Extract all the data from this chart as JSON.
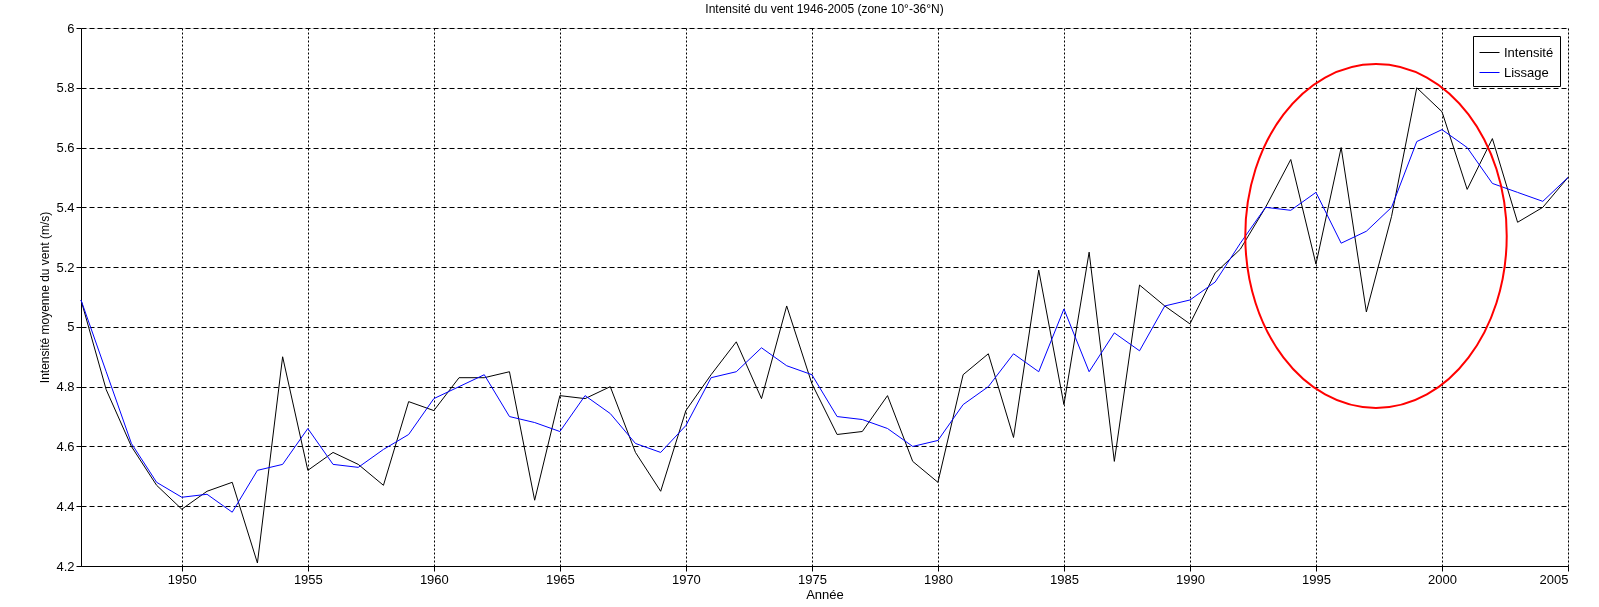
{
  "chart_data": {
    "type": "line",
    "title": "Intensité du vent 1946-2005 (zone 10°-36°N)",
    "xlabel": "Année",
    "ylabel": "Intensité moyenne du vent (m/s)",
    "x": [
      1946,
      1947,
      1948,
      1949,
      1950,
      1951,
      1952,
      1953,
      1954,
      1955,
      1956,
      1957,
      1958,
      1959,
      1960,
      1961,
      1962,
      1963,
      1964,
      1965,
      1966,
      1967,
      1968,
      1969,
      1970,
      1971,
      1972,
      1973,
      1974,
      1975,
      1976,
      1977,
      1978,
      1979,
      1980,
      1981,
      1982,
      1983,
      1984,
      1985,
      1986,
      1987,
      1988,
      1989,
      1990,
      1991,
      1992,
      1993,
      1994,
      1995,
      1996,
      1997,
      1998,
      1999,
      2000,
      2001,
      2002,
      2003,
      2004,
      2005
    ],
    "series": [
      {
        "name": "Intensité",
        "color": "#000000",
        "values": [
          5.09,
          4.79,
          4.6,
          4.47,
          4.39,
          4.45,
          4.48,
          4.21,
          4.9,
          4.52,
          4.58,
          4.54,
          4.47,
          4.75,
          4.72,
          4.83,
          4.83,
          4.85,
          4.42,
          4.77,
          4.76,
          4.8,
          4.58,
          4.45,
          4.72,
          4.84,
          4.95,
          4.76,
          5.07,
          4.81,
          4.64,
          4.65,
          4.77,
          4.55,
          4.48,
          4.84,
          4.91,
          4.63,
          5.19,
          4.74,
          5.25,
          4.55,
          5.14,
          5.07,
          5.01,
          5.18,
          5.26,
          5.4,
          5.56,
          5.21,
          5.6,
          5.05,
          5.37,
          5.8,
          5.72,
          5.46,
          5.63,
          5.35,
          5.4,
          5.5
        ]
      },
      {
        "name": "Lissage",
        "color": "#0000ff",
        "values": [
          5.09,
          4.85,
          4.61,
          4.48,
          4.43,
          4.44,
          4.38,
          4.52,
          4.54,
          4.66,
          4.54,
          4.53,
          4.59,
          4.64,
          4.76,
          4.8,
          4.84,
          4.7,
          4.68,
          4.65,
          4.77,
          4.71,
          4.61,
          4.58,
          4.67,
          4.83,
          4.85,
          4.93,
          4.87,
          4.84,
          4.7,
          4.69,
          4.66,
          4.6,
          4.62,
          4.74,
          4.8,
          4.91,
          4.85,
          5.06,
          4.85,
          4.98,
          4.92,
          5.07,
          5.09,
          5.15,
          5.28,
          5.4,
          5.39,
          5.45,
          5.28,
          5.32,
          5.4,
          5.62,
          5.66,
          5.6,
          5.48,
          5.45,
          5.42,
          5.5
        ]
      }
    ],
    "xlim": [
      1946,
      2005
    ],
    "xticks": [
      1950,
      1955,
      1960,
      1965,
      1970,
      1975,
      1980,
      1985,
      1990,
      1995,
      2000,
      2005
    ],
    "ylim": [
      4.2,
      6
    ],
    "yticks": [
      4.2,
      4.4,
      4.6,
      4.8,
      5,
      5.2,
      5.4,
      5.6,
      5.8,
      6
    ],
    "grid": true,
    "legend": "top right",
    "line_style": "solid",
    "marker": "none"
  }
}
